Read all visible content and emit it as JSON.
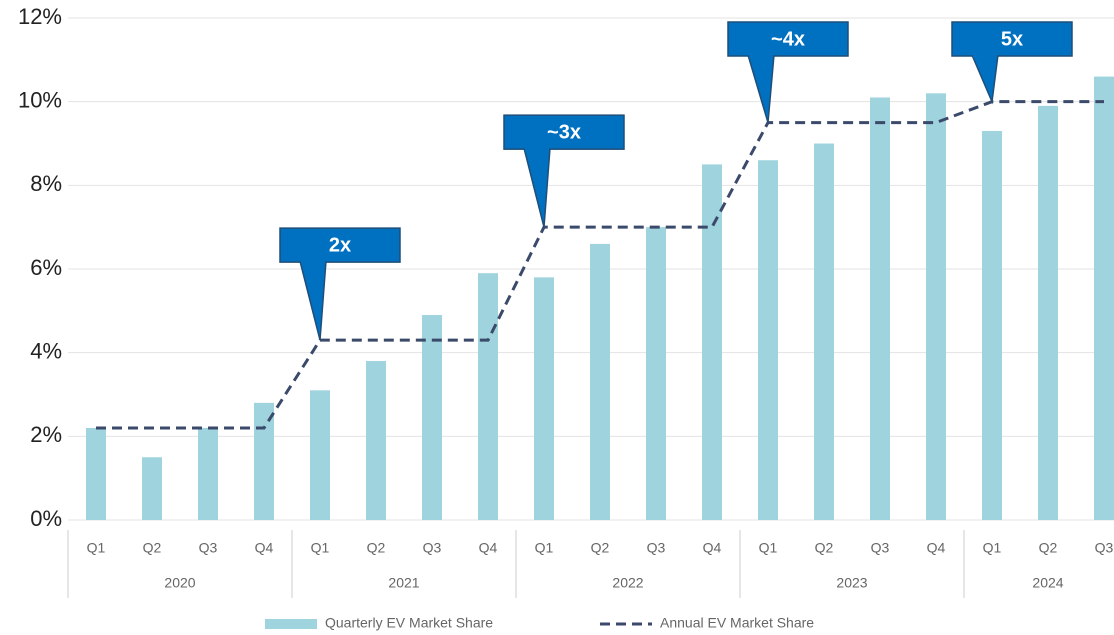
{
  "chart_data": {
    "type": "bar",
    "category_groups": [
      {
        "name": "2020",
        "categories": [
          "Q1",
          "Q2",
          "Q3",
          "Q4"
        ]
      },
      {
        "name": "2021",
        "categories": [
          "Q1",
          "Q2",
          "Q3",
          "Q4"
        ]
      },
      {
        "name": "2022",
        "categories": [
          "Q1",
          "Q2",
          "Q3",
          "Q4"
        ]
      },
      {
        "name": "2023",
        "categories": [
          "Q1",
          "Q2",
          "Q3",
          "Q4"
        ]
      },
      {
        "name": "2024",
        "categories": [
          "Q1",
          "Q2",
          "Q3"
        ]
      }
    ],
    "series": [
      {
        "name": "Quarterly EV Market Share",
        "type": "bar",
        "color": "#9fd3de",
        "values": [
          2.2,
          1.5,
          2.2,
          2.8,
          3.1,
          3.8,
          4.9,
          5.9,
          5.8,
          6.6,
          7.0,
          8.5,
          8.6,
          9.0,
          10.1,
          10.2,
          9.3,
          9.9,
          10.6
        ]
      },
      {
        "name": "Annual EV Market Share",
        "type": "line",
        "color": "#3b4a6b",
        "values": [
          2.2,
          2.2,
          2.2,
          2.2,
          4.3,
          4.3,
          4.3,
          4.3,
          7.0,
          7.0,
          7.0,
          7.0,
          9.5,
          9.5,
          9.5,
          9.5,
          10.0,
          10.0,
          10.0
        ]
      }
    ],
    "annotations": [
      "2x",
      "~3x",
      "~4x",
      "5x"
    ],
    "ylim": [
      0,
      12
    ],
    "yticks": [
      {
        "value": 0,
        "label": "0%"
      },
      {
        "value": 2,
        "label": "2%"
      },
      {
        "value": 4,
        "label": "4%"
      },
      {
        "value": 6,
        "label": "6%"
      },
      {
        "value": 8,
        "label": "8%"
      },
      {
        "value": 10,
        "label": "10%"
      },
      {
        "value": 12,
        "label": "12%"
      }
    ],
    "grid": true,
    "legend": "bottom"
  }
}
